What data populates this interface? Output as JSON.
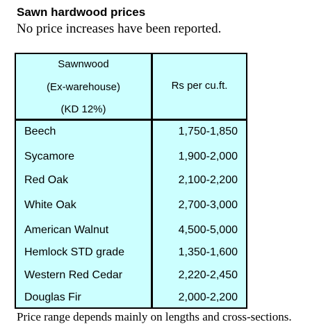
{
  "title": "Sawn hardwood prices",
  "subtitle": "No price increases have been reported.",
  "table": {
    "header_left": [
      "Sawnwood",
      "(Ex-warehouse)",
      "(KD 12%)"
    ],
    "header_right": "Rs per cu.ft.",
    "background_color": "#ccffff",
    "rows": [
      {
        "name": "Beech",
        "price": "1,750-1,850"
      },
      {
        "name": "Sycamore",
        "price": "1,900-2,000"
      },
      {
        "name": "Red Oak",
        "price": "2,100-2,200"
      },
      {
        "name": "White Oak",
        "price": "2,700-3,000"
      },
      {
        "name": "American Walnut",
        "price": "4,500-5,000"
      },
      {
        "name": "Hemlock STD grade",
        "price": "1,350-1,600"
      },
      {
        "name": "Western Red Cedar",
        "price": "2,220-2,450"
      },
      {
        "name": "Douglas Fir",
        "price": "2,000-2,200"
      }
    ]
  },
  "footnote": "Price range depends mainly on lengths and cross-sections."
}
